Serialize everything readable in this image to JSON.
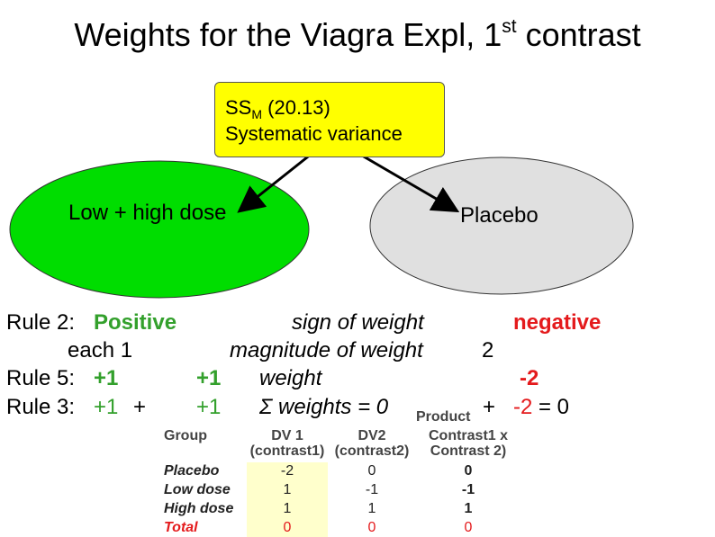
{
  "title": {
    "text": "Weights for the Viagra Expl, 1",
    "sup": "st",
    "suffix": " contrast"
  },
  "ss_box": {
    "line1_main": "SS",
    "line1_sub": "M",
    "line1_rest": " (20.13)",
    "line2": "Systematic variance"
  },
  "groups": {
    "left_label": "Low + high dose",
    "right_label": "Placebo"
  },
  "colors": {
    "box": "#ffff00",
    "left_ellipse": "#00dd00",
    "right_ellipse": "#e0e0e0",
    "green_text": "#33a02c",
    "red_text": "#e41a1c",
    "highlight": "#ffffcc"
  },
  "rules": {
    "r2_prefix": "Rule 2: ",
    "r2_left": "Positive",
    "r2_mid": "sign of weight",
    "r2_right": "negative",
    "r2b_left": "each 1",
    "r2b_mid": "magnitude of weight",
    "r2b_right": "2",
    "r5_prefix": "Rule 5: ",
    "r5_a": "+1",
    "r5_b": "+1",
    "r5_mid": "weight",
    "r5_right": "-2",
    "r3_prefix": "Rule 3: ",
    "r3_a": "+1",
    "r3_plus": "+",
    "r3_b": "+1",
    "r3_sigma": "Σ",
    "r3_mid": " weights = 0",
    "r3_plus2": "+",
    "r3_right": "-2",
    "r3_eq": " = 0"
  },
  "table": {
    "product_label": "Product",
    "headers": [
      [
        "Group",
        ""
      ],
      [
        "DV 1",
        "(contrast1)"
      ],
      [
        "DV2",
        "(contrast2)"
      ],
      [
        "Contrast1 x",
        "Contrast 2)"
      ]
    ],
    "rows": [
      {
        "group": "Placebo",
        "dv1": "-2",
        "dv2": "0",
        "prod": "0"
      },
      {
        "group": "Low dose",
        "dv1": "1",
        "dv2": "-1",
        "prod": "-1"
      },
      {
        "group": "High dose",
        "dv1": "1",
        "dv2": "1",
        "prod": "1"
      },
      {
        "group": "Total",
        "dv1": "0",
        "dv2": "0",
        "prod": "0"
      }
    ]
  }
}
